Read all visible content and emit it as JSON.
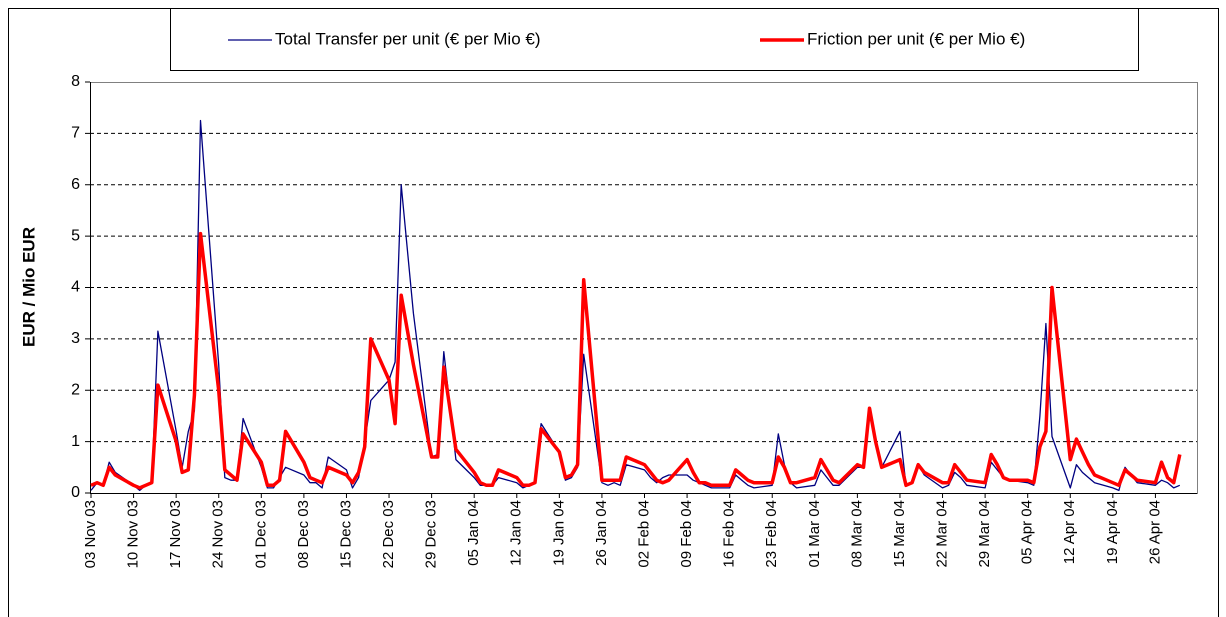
{
  "chart_data": {
    "type": "line",
    "ylabel": "EUR / Mio EUR",
    "x": [
      "2003-11-03",
      "2003-11-04",
      "2003-11-05",
      "2003-11-06",
      "2003-11-07",
      "2003-11-10",
      "2003-11-11",
      "2003-11-12",
      "2003-11-13",
      "2003-11-14",
      "2003-11-17",
      "2003-11-18",
      "2003-11-19",
      "2003-11-20",
      "2003-11-21",
      "2003-11-24",
      "2003-11-25",
      "2003-11-26",
      "2003-11-27",
      "2003-11-28",
      "2003-12-01",
      "2003-12-02",
      "2003-12-03",
      "2003-12-04",
      "2003-12-05",
      "2003-12-08",
      "2003-12-09",
      "2003-12-10",
      "2003-12-11",
      "2003-12-12",
      "2003-12-15",
      "2003-12-16",
      "2003-12-17",
      "2003-12-18",
      "2003-12-19",
      "2003-12-22",
      "2003-12-23",
      "2003-12-24",
      "2003-12-26",
      "2003-12-29",
      "2003-12-30",
      "2003-12-31",
      "2004-01-02",
      "2004-01-05",
      "2004-01-06",
      "2004-01-07",
      "2004-01-08",
      "2004-01-09",
      "2004-01-12",
      "2004-01-13",
      "2004-01-14",
      "2004-01-15",
      "2004-01-16",
      "2004-01-19",
      "2004-01-20",
      "2004-01-21",
      "2004-01-22",
      "2004-01-23",
      "2004-01-26",
      "2004-01-27",
      "2004-01-28",
      "2004-01-29",
      "2004-01-30",
      "2004-02-02",
      "2004-02-03",
      "2004-02-04",
      "2004-02-05",
      "2004-02-06",
      "2004-02-09",
      "2004-02-10",
      "2004-02-11",
      "2004-02-12",
      "2004-02-13",
      "2004-02-16",
      "2004-02-17",
      "2004-02-18",
      "2004-02-19",
      "2004-02-20",
      "2004-02-23",
      "2004-02-24",
      "2004-02-25",
      "2004-02-26",
      "2004-02-27",
      "2004-03-01",
      "2004-03-02",
      "2004-03-03",
      "2004-03-04",
      "2004-03-05",
      "2004-03-08",
      "2004-03-09",
      "2004-03-10",
      "2004-03-11",
      "2004-03-12",
      "2004-03-15",
      "2004-03-16",
      "2004-03-17",
      "2004-03-18",
      "2004-03-19",
      "2004-03-22",
      "2004-03-23",
      "2004-03-24",
      "2004-03-25",
      "2004-03-26",
      "2004-03-29",
      "2004-03-30",
      "2004-03-31",
      "2004-04-01",
      "2004-04-02",
      "2004-04-05",
      "2004-04-06",
      "2004-04-07",
      "2004-04-08",
      "2004-04-09",
      "2004-04-12",
      "2004-04-13",
      "2004-04-14",
      "2004-04-15",
      "2004-04-16",
      "2004-04-19",
      "2004-04-20",
      "2004-04-21",
      "2004-04-22",
      "2004-04-23",
      "2004-04-26",
      "2004-04-27",
      "2004-04-28",
      "2004-04-29",
      "2004-04-30"
    ],
    "series": [
      {
        "name": "Total Transfer per unit (€ per Mio €)",
        "color": "#000080",
        "width": 1.3,
        "values": [
          0.05,
          0.2,
          0.15,
          0.6,
          0.4,
          0.15,
          0.05,
          0.15,
          0.2,
          3.15,
          1.2,
          0.5,
          1.2,
          1.6,
          7.25,
          2.5,
          0.3,
          0.25,
          0.25,
          1.45,
          0.5,
          0.1,
          0.1,
          0.3,
          0.5,
          0.35,
          0.2,
          0.2,
          0.1,
          0.7,
          0.45,
          0.1,
          0.3,
          1.0,
          1.8,
          2.2,
          2.55,
          6.0,
          3.5,
          0.7,
          0.75,
          2.75,
          0.65,
          0.3,
          0.15,
          0.15,
          0.15,
          0.3,
          0.2,
          0.1,
          0.15,
          0.2,
          1.35,
          0.8,
          0.25,
          0.3,
          0.5,
          2.7,
          0.2,
          0.15,
          0.2,
          0.15,
          0.55,
          0.45,
          0.3,
          0.2,
          0.3,
          0.35,
          0.35,
          0.25,
          0.2,
          0.15,
          0.1,
          0.1,
          0.35,
          0.25,
          0.15,
          0.1,
          0.15,
          1.15,
          0.55,
          0.2,
          0.1,
          0.15,
          0.45,
          0.3,
          0.15,
          0.15,
          0.5,
          0.5,
          1.6,
          1.0,
          0.5,
          1.2,
          0.15,
          0.2,
          0.55,
          0.35,
          0.1,
          0.15,
          0.4,
          0.3,
          0.15,
          0.1,
          0.6,
          0.45,
          0.3,
          0.25,
          0.2,
          0.15,
          1.5,
          3.3,
          1.1,
          0.1,
          0.55,
          0.4,
          0.3,
          0.2,
          0.1,
          0.05,
          0.5,
          0.35,
          0.2,
          0.15,
          0.25,
          0.2,
          0.1,
          0.15
        ]
      },
      {
        "name": "Friction per unit (€ per Mio €)",
        "color": "#ff0000",
        "width": 3.5,
        "values": [
          0.15,
          0.2,
          0.15,
          0.5,
          0.35,
          0.15,
          0.1,
          0.15,
          0.2,
          2.1,
          1.0,
          0.4,
          0.45,
          1.9,
          5.05,
          2.0,
          0.45,
          0.35,
          0.25,
          1.15,
          0.6,
          0.15,
          0.15,
          0.25,
          1.2,
          0.6,
          0.3,
          0.25,
          0.2,
          0.5,
          0.35,
          0.2,
          0.4,
          0.9,
          3.0,
          2.2,
          1.35,
          3.85,
          2.5,
          0.7,
          0.7,
          2.45,
          0.85,
          0.4,
          0.2,
          0.15,
          0.15,
          0.45,
          0.3,
          0.15,
          0.15,
          0.2,
          1.25,
          0.8,
          0.3,
          0.35,
          0.55,
          4.15,
          0.25,
          0.25,
          0.25,
          0.25,
          0.7,
          0.55,
          0.4,
          0.25,
          0.2,
          0.25,
          0.65,
          0.4,
          0.2,
          0.2,
          0.15,
          0.15,
          0.45,
          0.35,
          0.25,
          0.2,
          0.2,
          0.7,
          0.5,
          0.2,
          0.2,
          0.3,
          0.65,
          0.45,
          0.25,
          0.2,
          0.55,
          0.5,
          1.65,
          1.0,
          0.5,
          0.65,
          0.15,
          0.2,
          0.55,
          0.4,
          0.2,
          0.2,
          0.55,
          0.4,
          0.25,
          0.2,
          0.75,
          0.55,
          0.3,
          0.25,
          0.25,
          0.2,
          0.9,
          1.2,
          4.0,
          0.65,
          1.05,
          0.8,
          0.55,
          0.35,
          0.2,
          0.15,
          0.45,
          0.35,
          0.25,
          0.2,
          0.6,
          0.3,
          0.2,
          0.75
        ]
      }
    ],
    "xlim": [
      "2003-11-03",
      "2004-05-03"
    ],
    "xticks": [
      {
        "value": "2003-11-03",
        "label": "03 Nov 03"
      },
      {
        "value": "2003-11-10",
        "label": "10 Nov 03"
      },
      {
        "value": "2003-11-17",
        "label": "17 Nov 03"
      },
      {
        "value": "2003-11-24",
        "label": "24 Nov 03"
      },
      {
        "value": "2003-12-01",
        "label": "01 Dec 03"
      },
      {
        "value": "2003-12-08",
        "label": "08 Dec 03"
      },
      {
        "value": "2003-12-15",
        "label": "15 Dec 03"
      },
      {
        "value": "2003-12-22",
        "label": "22 Dec 03"
      },
      {
        "value": "2003-12-29",
        "label": "29 Dec 03"
      },
      {
        "value": "2004-01-05",
        "label": "05 Jan 04"
      },
      {
        "value": "2004-01-12",
        "label": "12 Jan 04"
      },
      {
        "value": "2004-01-19",
        "label": "19 Jan 04"
      },
      {
        "value": "2004-01-26",
        "label": "26 Jan 04"
      },
      {
        "value": "2004-02-02",
        "label": "02 Feb 04"
      },
      {
        "value": "2004-02-09",
        "label": "09 Feb 04"
      },
      {
        "value": "2004-02-16",
        "label": "16 Feb 04"
      },
      {
        "value": "2004-02-23",
        "label": "23 Feb 04"
      },
      {
        "value": "2004-03-01",
        "label": "01 Mar 04"
      },
      {
        "value": "2004-03-08",
        "label": "08 Mar 04"
      },
      {
        "value": "2004-03-15",
        "label": "15 Mar 04"
      },
      {
        "value": "2004-03-22",
        "label": "22 Mar 04"
      },
      {
        "value": "2004-03-29",
        "label": "29 Mar 04"
      },
      {
        "value": "2004-04-05",
        "label": "05 Apr 04"
      },
      {
        "value": "2004-04-12",
        "label": "12 Apr 04"
      },
      {
        "value": "2004-04-19",
        "label": "19 Apr 04"
      },
      {
        "value": "2004-04-26",
        "label": "26 Apr 04"
      }
    ],
    "ylim": [
      0,
      8
    ],
    "yticks": [
      0,
      1,
      2,
      3,
      4,
      5,
      6,
      7,
      8
    ],
    "grid": true,
    "legend": "top"
  }
}
